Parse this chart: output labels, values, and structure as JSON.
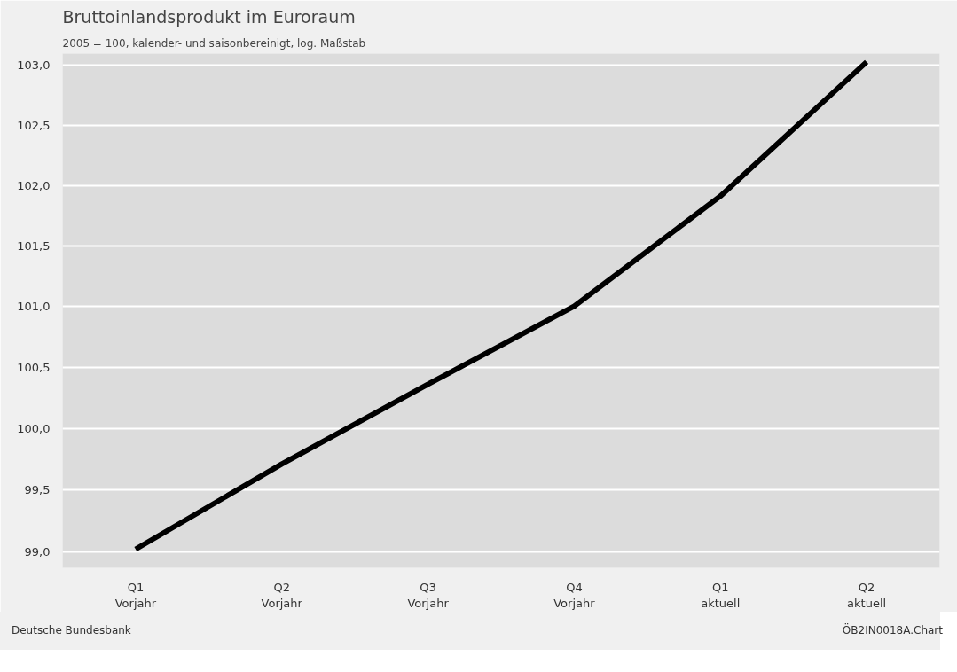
{
  "chart_data": {
    "type": "line",
    "title": "Bruttoinlandsprodukt im Euroraum",
    "subtitle": "2005 = 100, kalender- und saisonbereinigt, log. Maßstab",
    "categories": [
      "Q1\nVorjahr",
      "Q2\nVorjahr",
      "Q3\nVorjahr",
      "Q4\nVorjahr",
      "Q1\naktuell",
      "Q2\naktuell"
    ],
    "series": [
      {
        "color": "#000000",
        "values": [
          99.02,
          99.71,
          100.36,
          101.0,
          101.91,
          103.03
        ]
      }
    ],
    "ylim": [
      98.87,
      103.1
    ],
    "yticks": [
      {
        "value": 99.0,
        "label": "99,0"
      },
      {
        "value": 99.5,
        "label": "99,5"
      },
      {
        "value": 100.0,
        "label": "100,0"
      },
      {
        "value": 100.5,
        "label": "100,5"
      },
      {
        "value": 101.0,
        "label": "101,0"
      },
      {
        "value": 101.5,
        "label": "101,5"
      },
      {
        "value": 102.0,
        "label": "102,0"
      },
      {
        "value": 102.5,
        "label": "102,5"
      },
      {
        "value": 103.0,
        "label": "103,0"
      }
    ],
    "log": "y",
    "grid": "y",
    "marker": "none",
    "line_style": "solid",
    "annotations": [
      "Deutsche Bundesbank",
      "ÖB2IN0018A.Chart"
    ]
  }
}
